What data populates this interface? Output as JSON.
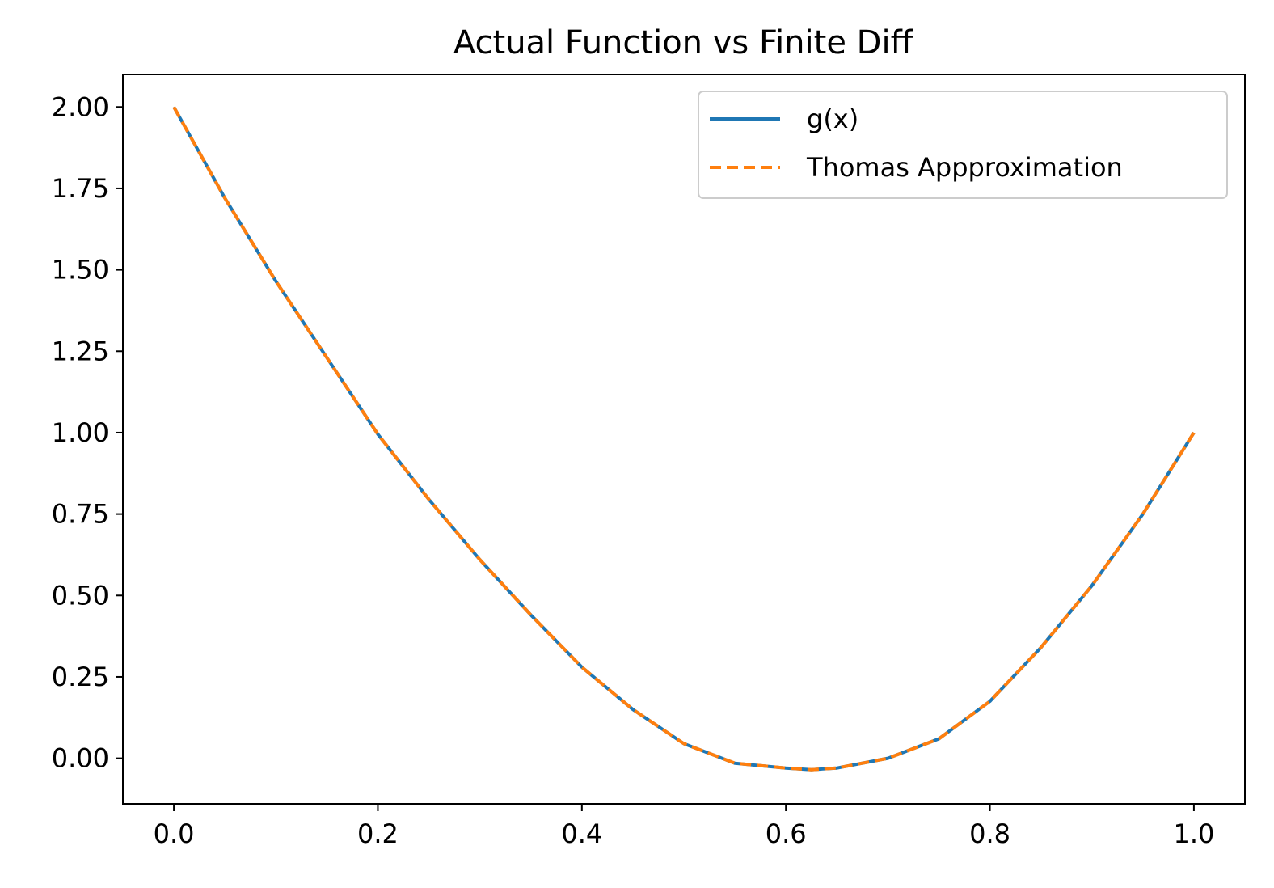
{
  "chart_data": {
    "type": "line",
    "title": "Actual Function vs Finite Diff",
    "xlabel": "",
    "ylabel": "",
    "xlim": [
      -0.05,
      1.05
    ],
    "ylim": [
      -0.14,
      2.1
    ],
    "x_ticks": [
      0.0,
      0.2,
      0.4,
      0.6,
      0.8,
      1.0
    ],
    "x_tick_labels": [
      "0.0",
      "0.2",
      "0.4",
      "0.6",
      "0.8",
      "1.0"
    ],
    "y_ticks": [
      0.0,
      0.25,
      0.5,
      0.75,
      1.0,
      1.25,
      1.5,
      1.75,
      2.0
    ],
    "y_tick_labels": [
      "0.00",
      "0.25",
      "0.50",
      "0.75",
      "1.00",
      "1.25",
      "1.50",
      "1.75",
      "2.00"
    ],
    "grid": false,
    "legend_position": "upper right",
    "x": [
      0.0,
      0.05,
      0.1,
      0.15,
      0.2,
      0.25,
      0.3,
      0.35,
      0.4,
      0.45,
      0.5,
      0.55,
      0.6,
      0.625,
      0.65,
      0.7,
      0.75,
      0.8,
      0.85,
      0.9,
      0.95,
      1.0
    ],
    "series": [
      {
        "name": "g(x)",
        "color": "#1f77b4",
        "style": "solid",
        "values": [
          2.0,
          1.72,
          1.465,
          1.23,
          0.995,
          0.795,
          0.61,
          0.44,
          0.28,
          0.15,
          0.045,
          -0.015,
          -0.03,
          -0.035,
          -0.03,
          0.0,
          0.06,
          0.175,
          0.34,
          0.53,
          0.75,
          1.0
        ]
      },
      {
        "name": "Thomas Appproximation",
        "color": "#ff7f0e",
        "style": "dashed",
        "values": [
          2.0,
          1.72,
          1.465,
          1.23,
          0.995,
          0.795,
          0.61,
          0.44,
          0.28,
          0.15,
          0.045,
          -0.015,
          -0.03,
          -0.035,
          -0.03,
          0.0,
          0.06,
          0.175,
          0.34,
          0.53,
          0.75,
          1.0
        ]
      }
    ]
  }
}
